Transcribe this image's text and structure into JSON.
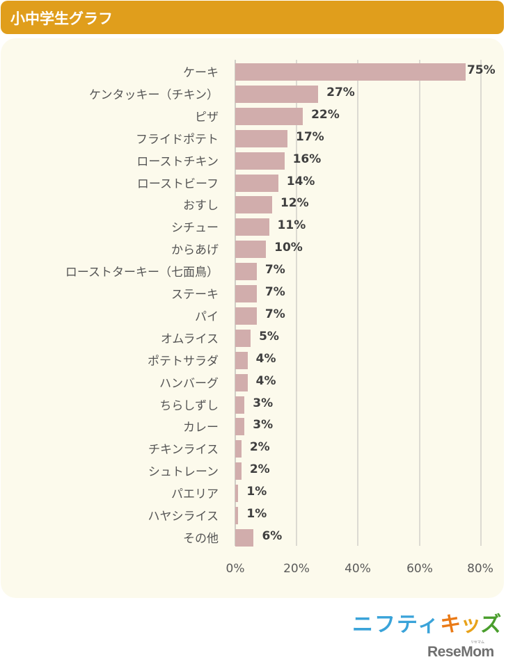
{
  "header": {
    "title": "小中学生グラフ"
  },
  "colors": {
    "header_bg": "#e09e1c",
    "panel_bg": "#fcfaec",
    "bar": "#d1adac",
    "gridline": "#dcdad2"
  },
  "chart_data": {
    "type": "bar",
    "orientation": "horizontal",
    "title": "小中学生グラフ",
    "xlabel": "",
    "ylabel": "",
    "xlim": [
      0,
      80
    ],
    "grid": true,
    "x_ticks": [
      "0%",
      "20%",
      "40%",
      "60%",
      "80%"
    ],
    "categories": [
      "ケーキ",
      "ケンタッキー（チキン）",
      "ピザ",
      "フライドポテト",
      "ローストチキン",
      "ローストビーフ",
      "おすし",
      "シチュー",
      "からあげ",
      "ローストターキー（七面鳥）",
      "ステーキ",
      "パイ",
      "オムライス",
      "ポテトサラダ",
      "ハンバーグ",
      "ちらしずし",
      "カレー",
      "チキンライス",
      "シュトレーン",
      "パエリア",
      "ハヤシライス",
      "その他"
    ],
    "values": [
      75,
      27,
      22,
      17,
      16,
      14,
      12,
      11,
      10,
      7,
      7,
      7,
      5,
      4,
      4,
      3,
      3,
      2,
      2,
      1,
      1,
      6
    ],
    "value_labels": [
      "75%",
      "27%",
      "22%",
      "17%",
      "16%",
      "14%",
      "12%",
      "11%",
      "10%",
      "7%",
      "7%",
      "7%",
      "5%",
      "4%",
      "4%",
      "3%",
      "3%",
      "2%",
      "2%",
      "1%",
      "1%",
      "6%"
    ],
    "legend": []
  },
  "logos": {
    "nifty": "ニフティ",
    "kids": [
      "キ",
      "ッ",
      "ズ"
    ],
    "resemom": "ReseMom",
    "resemom_ruby": "リセマム"
  }
}
